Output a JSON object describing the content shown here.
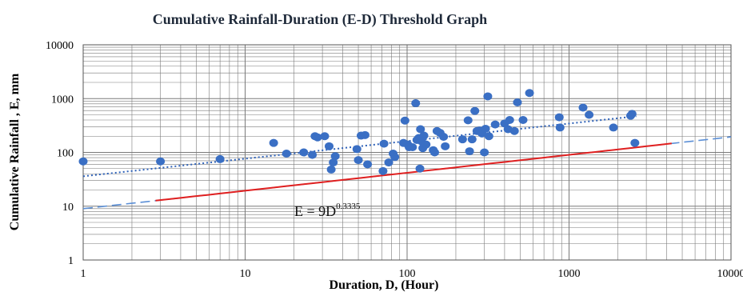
{
  "chart_data": {
    "type": "scatter",
    "title": "Cumulative Rainfall-Duration (E-D) Threshold Graph",
    "xlabel": "Duration, D, (Hour)",
    "ylabel": "Cumulative Rainfall , E, mm",
    "x_scale": "log",
    "y_scale": "log",
    "xlim": [
      1,
      10000
    ],
    "ylim": [
      1,
      10000
    ],
    "x_ticks": [
      "1",
      "10",
      "100",
      "1000",
      "10000"
    ],
    "y_ticks": [
      "1",
      "10",
      "100",
      "1000",
      "10000"
    ],
    "grid": "on",
    "colors": {
      "points": "#3a6fc4",
      "threshold": "#e02020",
      "dashed": "#5b8fd6",
      "dotted": "#2f62b8",
      "grid": "#7a7a7a"
    },
    "points": [
      [
        1,
        68
      ],
      [
        3,
        68
      ],
      [
        7,
        75
      ],
      [
        15,
        150
      ],
      [
        18,
        95
      ],
      [
        23,
        100
      ],
      [
        26,
        90
      ],
      [
        27,
        200
      ],
      [
        28,
        190
      ],
      [
        31,
        200
      ],
      [
        33,
        130
      ],
      [
        34,
        48
      ],
      [
        35,
        65
      ],
      [
        36,
        85
      ],
      [
        49,
        115
      ],
      [
        50,
        72
      ],
      [
        52,
        205
      ],
      [
        55,
        210
      ],
      [
        57,
        60
      ],
      [
        71,
        45
      ],
      [
        72,
        145
      ],
      [
        77,
        65
      ],
      [
        82,
        95
      ],
      [
        84,
        82
      ],
      [
        95,
        150
      ],
      [
        97,
        390
      ],
      [
        101,
        140
      ],
      [
        103,
        125
      ],
      [
        108,
        125
      ],
      [
        113,
        820
      ],
      [
        115,
        170
      ],
      [
        118,
        185
      ],
      [
        120,
        50
      ],
      [
        121,
        270
      ],
      [
        123,
        160
      ],
      [
        125,
        120
      ],
      [
        127,
        205
      ],
      [
        131,
        140
      ],
      [
        145,
        110
      ],
      [
        148,
        100
      ],
      [
        153,
        250
      ],
      [
        160,
        230
      ],
      [
        168,
        195
      ],
      [
        172,
        130
      ],
      [
        220,
        175
      ],
      [
        238,
        395
      ],
      [
        243,
        105
      ],
      [
        252,
        175
      ],
      [
        262,
        590
      ],
      [
        270,
        250
      ],
      [
        280,
        255
      ],
      [
        290,
        225
      ],
      [
        300,
        100
      ],
      [
        305,
        275
      ],
      [
        315,
        1100
      ],
      [
        320,
        200
      ],
      [
        350,
        330
      ],
      [
        400,
        345
      ],
      [
        420,
        270
      ],
      [
        430,
        400
      ],
      [
        460,
        250
      ],
      [
        480,
        850
      ],
      [
        520,
        400
      ],
      [
        570,
        1270
      ],
      [
        870,
        450
      ],
      [
        880,
        290
      ],
      [
        1220,
        680
      ],
      [
        1330,
        500
      ],
      [
        1880,
        290
      ],
      [
        2400,
        480
      ],
      [
        2450,
        520
      ],
      [
        2550,
        150
      ]
    ],
    "threshold_line": {
      "equation": "E = 9D",
      "exponent": "0.3335",
      "a": 9,
      "b": 0.3335,
      "x_range": [
        2.8,
        4300
      ]
    },
    "lower_extension": {
      "a": 9,
      "b": 0.3335,
      "x_range": [
        1,
        10000
      ]
    },
    "upper_trendline": {
      "from": [
        1,
        36
      ],
      "to": [
        2600,
        470
      ]
    }
  }
}
